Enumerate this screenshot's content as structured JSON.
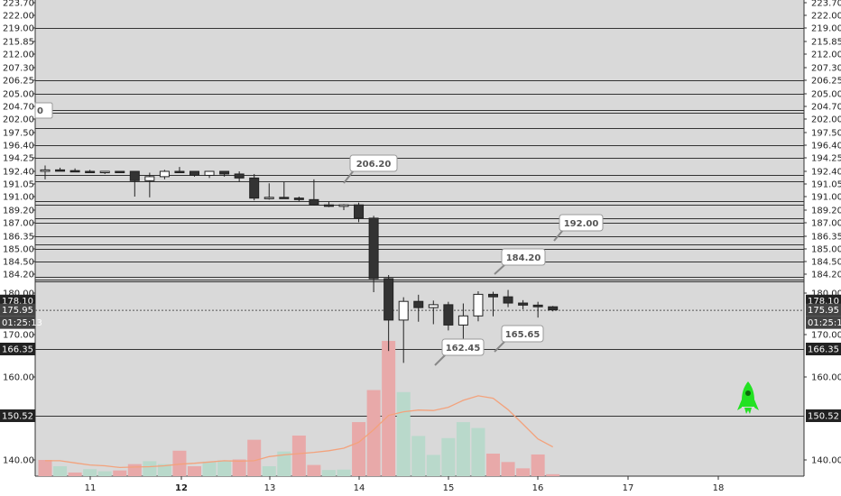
{
  "chart_data": {
    "type": "candlestick",
    "price_ticks": [
      "223.70",
      "222.00",
      "219.00",
      "215.85",
      "212.00",
      "207.30",
      "206.25",
      "205.00",
      "204.70",
      "202.00",
      "197.50",
      "196.40",
      "194.25",
      "192.40",
      "192.00",
      "191.05",
      "191.00",
      "189.20",
      "187.00",
      "186.35",
      "185.00",
      "184.50",
      "184.20",
      "180.00",
      "175.00",
      "170.00",
      "166.35",
      "160.00",
      "150.52",
      "140.00"
    ],
    "horizontal_levels": [
      219.0,
      206.25,
      205.0,
      204.0,
      203.3,
      199.0,
      196.4,
      194.25,
      191.7,
      191.25,
      190.4,
      189.9,
      187.8,
      187.05,
      186.35,
      185.5,
      185.0,
      184.5,
      183.5,
      183.0,
      182.7,
      166.35,
      150.52
    ],
    "last_price_label": "178.10",
    "current_price_label": "175.95",
    "countdown_label": "01:25:13",
    "level_badges": [
      "166.35",
      "150.52"
    ],
    "dates": [
      "11",
      "12",
      "13",
      "14",
      "15",
      "16",
      "17",
      "18"
    ],
    "candles": [
      {
        "o": 192.1,
        "h": 193.2,
        "l": 191.4,
        "c": 192.6
      },
      {
        "o": 192.6,
        "h": 192.9,
        "l": 192.2,
        "c": 192.5
      },
      {
        "o": 192.5,
        "h": 192.8,
        "l": 192.0,
        "c": 192.3
      },
      {
        "o": 192.3,
        "h": 192.6,
        "l": 191.9,
        "c": 192.0
      },
      {
        "o": 192.0,
        "h": 192.3,
        "l": 191.8,
        "c": 192.2
      },
      {
        "o": 192.2,
        "h": 192.4,
        "l": 191.9,
        "c": 192.0
      },
      {
        "o": 192.0,
        "h": 192.2,
        "l": 191.0,
        "c": 191.3
      },
      {
        "o": 191.3,
        "h": 191.9,
        "l": 190.9,
        "c": 191.6
      },
      {
        "o": 191.6,
        "h": 192.6,
        "l": 191.4,
        "c": 192.4
      },
      {
        "o": 192.4,
        "h": 193.0,
        "l": 191.9,
        "c": 192.0
      },
      {
        "o": 192.0,
        "h": 192.3,
        "l": 191.6,
        "c": 191.7
      },
      {
        "o": 191.7,
        "h": 192.2,
        "l": 191.5,
        "c": 192.1
      },
      {
        "o": 192.1,
        "h": 192.4,
        "l": 191.6,
        "c": 191.8
      },
      {
        "o": 191.8,
        "h": 192.0,
        "l": 191.2,
        "c": 191.5
      },
      {
        "o": 191.5,
        "h": 191.8,
        "l": 190.5,
        "c": 190.8
      },
      {
        "o": 190.8,
        "h": 191.1,
        "l": 190.6,
        "c": 190.9
      },
      {
        "o": 190.9,
        "h": 191.2,
        "l": 190.7,
        "c": 190.8
      },
      {
        "o": 190.8,
        "h": 191.0,
        "l": 190.4,
        "c": 190.6
      },
      {
        "o": 190.6,
        "h": 191.4,
        "l": 189.8,
        "c": 189.9
      },
      {
        "o": 189.9,
        "h": 190.3,
        "l": 189.6,
        "c": 189.7
      },
      {
        "o": 189.7,
        "h": 190.0,
        "l": 189.2,
        "c": 189.9
      },
      {
        "o": 189.9,
        "h": 190.2,
        "l": 187.1,
        "c": 187.8
      },
      {
        "o": 187.8,
        "h": 188.2,
        "l": 180.2,
        "c": 183.2
      },
      {
        "o": 183.2,
        "h": 184.0,
        "l": 165.9,
        "c": 173.5
      },
      {
        "o": 173.5,
        "h": 179.0,
        "l": 163.2,
        "c": 178.0
      },
      {
        "o": 178.0,
        "h": 179.6,
        "l": 173.1,
        "c": 176.5
      },
      {
        "o": 176.5,
        "h": 178.2,
        "l": 172.5,
        "c": 177.2
      },
      {
        "o": 177.2,
        "h": 177.9,
        "l": 171.0,
        "c": 172.3
      },
      {
        "o": 172.3,
        "h": 177.5,
        "l": 166.2,
        "c": 174.5
      },
      {
        "o": 174.5,
        "h": 180.4,
        "l": 173.2,
        "c": 179.7
      },
      {
        "o": 179.7,
        "h": 180.3,
        "l": 174.4,
        "c": 179.1
      },
      {
        "o": 179.1,
        "h": 180.7,
        "l": 176.6,
        "c": 177.6
      },
      {
        "o": 177.6,
        "h": 178.3,
        "l": 176.1,
        "c": 177.1
      },
      {
        "o": 177.1,
        "h": 177.9,
        "l": 174.1,
        "c": 176.7
      },
      {
        "o": 176.7,
        "h": 176.9,
        "l": 175.6,
        "c": 175.95
      }
    ],
    "volumes": [
      {
        "v": 140.0,
        "up": false
      },
      {
        "v": 138.5,
        "up": true
      },
      {
        "v": 137.0,
        "up": false
      },
      {
        "v": 137.8,
        "up": true
      },
      {
        "v": 137.3,
        "up": true
      },
      {
        "v": 137.5,
        "up": false
      },
      {
        "v": 139.0,
        "up": false
      },
      {
        "v": 139.7,
        "up": true
      },
      {
        "v": 139.0,
        "up": true
      },
      {
        "v": 142.2,
        "up": false
      },
      {
        "v": 138.5,
        "up": false
      },
      {
        "v": 139.6,
        "up": true
      },
      {
        "v": 139.9,
        "up": true
      },
      {
        "v": 140.1,
        "up": false
      },
      {
        "v": 144.8,
        "up": false
      },
      {
        "v": 138.5,
        "up": true
      },
      {
        "v": 142.0,
        "up": true
      },
      {
        "v": 145.8,
        "up": false
      },
      {
        "v": 138.8,
        "up": false
      },
      {
        "v": 137.6,
        "up": true
      },
      {
        "v": 137.7,
        "up": true
      },
      {
        "v": 149.0,
        "up": false
      },
      {
        "v": 156.8,
        "up": false
      },
      {
        "v": 168.4,
        "up": false
      },
      {
        "v": 156.3,
        "up": true
      },
      {
        "v": 145.7,
        "up": true
      },
      {
        "v": 141.2,
        "up": true
      },
      {
        "v": 145.2,
        "up": true
      },
      {
        "v": 149.0,
        "up": true
      },
      {
        "v": 147.6,
        "up": true
      },
      {
        "v": 141.5,
        "up": false
      },
      {
        "v": 139.5,
        "up": false
      },
      {
        "v": 138.0,
        "up": false
      },
      {
        "v": 141.3,
        "up": false
      },
      {
        "v": 136.6,
        "up": false
      }
    ],
    "volume_ma": [
      139.8,
      139.8,
      139.3,
      138.8,
      138.6,
      138.2,
      138.3,
      138.4,
      138.6,
      139.0,
      139.2,
      139.5,
      139.8,
      139.7,
      139.8,
      140.8,
      141.2,
      141.5,
      141.8,
      142.2,
      142.8,
      144.2,
      147.2,
      150.6,
      151.5,
      151.9,
      151.8,
      152.6,
      154.3,
      155.4,
      154.8,
      152.0,
      148.5,
      145.0,
      143.1
    ],
    "callouts": [
      "206.20",
      "192.00",
      "184.20",
      "162.45",
      "165.65"
    ],
    "partial_tag_text": "0",
    "colors": {
      "up_body": "#ffffff",
      "down_body": "#333333",
      "vol_up": "#b9d9cb",
      "vol_down": "#e8a9a9",
      "ma": "#f3a27c",
      "rocket": "#22e222"
    },
    "icons": [
      "rocket-icon"
    ]
  }
}
